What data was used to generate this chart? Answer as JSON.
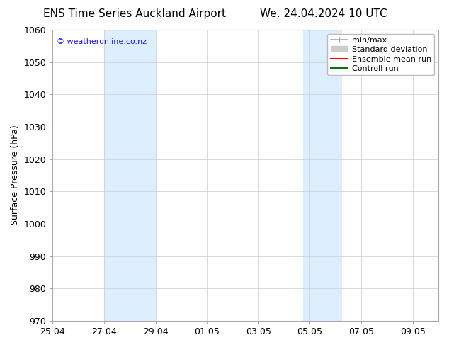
{
  "title_left": "ENS Time Series Auckland Airport",
  "title_right": "We. 24.04.2024 10 UTC",
  "ylabel": "Surface Pressure (hPa)",
  "ylim": [
    970,
    1060
  ],
  "yticks": [
    970,
    980,
    990,
    1000,
    1010,
    1020,
    1030,
    1040,
    1050,
    1060
  ],
  "xtick_labels": [
    "25.04",
    "27.04",
    "29.04",
    "01.05",
    "03.05",
    "05.05",
    "07.05",
    "09.05"
  ],
  "xtick_positions": [
    0,
    2,
    4,
    6,
    8,
    10,
    12,
    14
  ],
  "xlim": [
    0,
    15
  ],
  "shading_regions": [
    {
      "xstart": 2.0,
      "xend": 4.0,
      "color": "#ddeeff"
    },
    {
      "xstart": 9.75,
      "xend": 11.25,
      "color": "#ddeeff"
    }
  ],
  "watermark": "© weatheronline.co.nz",
  "watermark_color": "#1a1aff",
  "legend_items": [
    {
      "label": "min/max",
      "color": "#aaaaaa",
      "lw": 1.2
    },
    {
      "label": "Standard deviation",
      "color": "#cccccc",
      "lw": 6
    },
    {
      "label": "Ensemble mean run",
      "color": "#ff0000",
      "lw": 1.5
    },
    {
      "label": "Controll run",
      "color": "#007700",
      "lw": 1.5
    }
  ],
  "bg_color": "#ffffff",
  "grid_color": "#cccccc",
  "title_fontsize": 11,
  "ylabel_fontsize": 9,
  "tick_fontsize": 9,
  "legend_fontsize": 8,
  "watermark_fontsize": 8
}
